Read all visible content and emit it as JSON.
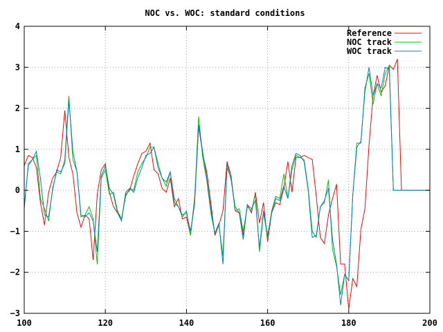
{
  "chart_data": {
    "type": "line",
    "title": "NOC vs. WOC: standard conditions",
    "xlabel": "",
    "ylabel": "",
    "xlim": [
      100,
      200
    ],
    "ylim": [
      -3,
      4
    ],
    "xticks": [
      100,
      120,
      140,
      160,
      180,
      200
    ],
    "yticks": [
      -3,
      -2,
      -1,
      0,
      1,
      2,
      3,
      4
    ],
    "grid": true,
    "legend_position": "top-right",
    "x": [
      100,
      101,
      102,
      103,
      104,
      105,
      106,
      107,
      108,
      109,
      110,
      111,
      112,
      113,
      114,
      115,
      116,
      117,
      118,
      119,
      120,
      121,
      122,
      123,
      124,
      125,
      126,
      127,
      128,
      129,
      130,
      131,
      132,
      133,
      134,
      135,
      136,
      137,
      138,
      139,
      140,
      141,
      142,
      143,
      144,
      145,
      146,
      147,
      148,
      149,
      150,
      151,
      152,
      153,
      154,
      155,
      156,
      157,
      158,
      159,
      160,
      161,
      162,
      163,
      164,
      165,
      166,
      167,
      168,
      169,
      170,
      171,
      172,
      173,
      174,
      175,
      176,
      177,
      178,
      179,
      180,
      181,
      182,
      183,
      184,
      185,
      186,
      187,
      188,
      189,
      190,
      191,
      192,
      193,
      194,
      195,
      196,
      197,
      198,
      199,
      200
    ],
    "series": [
      {
        "name": "Reference",
        "color": "#ff0000",
        "values": [
          0.6,
          0.85,
          0.8,
          0.55,
          -0.3,
          -0.85,
          -0.05,
          0.3,
          0.45,
          0.8,
          1.95,
          0.8,
          0.4,
          -0.55,
          -0.9,
          -0.6,
          -0.7,
          -1.7,
          -0.1,
          0.5,
          0.65,
          -0.05,
          -0.4,
          -0.55,
          -0.7,
          -0.1,
          0.0,
          0.35,
          0.65,
          0.9,
          0.95,
          1.15,
          0.5,
          0.4,
          0.05,
          -0.05,
          0.3,
          -0.4,
          -0.2,
          -0.7,
          -0.65,
          -1.1,
          -0.2,
          1.55,
          0.9,
          0.45,
          -0.3,
          -1.1,
          -0.85,
          -0.5,
          0.7,
          0.35,
          -0.5,
          -0.55,
          -1.1,
          -0.35,
          -0.55,
          -0.05,
          -0.8,
          -0.3,
          -1.25,
          -0.55,
          -0.3,
          -0.35,
          0.05,
          0.7,
          -0.05,
          0.8,
          0.8,
          0.85,
          0.8,
          0.75,
          -0.15,
          -1.15,
          -1.3,
          -0.6,
          -0.2,
          0.15,
          -1.8,
          -1.8,
          -2.9,
          -2.15,
          -2.35,
          -0.95,
          -0.45,
          1.1,
          2.3,
          2.8,
          2.4,
          2.55,
          3.05,
          2.95,
          3.2,
          0.0,
          0.0,
          0.0,
          0.0,
          0.0,
          0.0,
          0.0,
          0.0
        ],
        "x_offset": 0
      },
      {
        "name": "NOC track",
        "color": "#00c000",
        "values": [
          -0.4,
          0.6,
          0.75,
          0.85,
          -0.2,
          -0.45,
          -0.75,
          0.05,
          0.45,
          0.4,
          0.75,
          2.3,
          0.75,
          0.45,
          -0.65,
          -0.6,
          -0.4,
          -0.7,
          -1.8,
          0.3,
          0.5,
          -0.1,
          -0.05,
          -0.5,
          -0.7,
          -0.15,
          0.05,
          0.0,
          0.45,
          0.65,
          0.8,
          1.05,
          1.05,
          0.65,
          0.3,
          0.1,
          0.45,
          -0.2,
          -0.4,
          -0.65,
          -0.5,
          -1.1,
          -0.25,
          1.8,
          0.8,
          0.25,
          -0.55,
          -1.05,
          -0.85,
          -1.6,
          0.55,
          0.3,
          -0.5,
          -0.45,
          -1.0,
          -0.4,
          -0.5,
          -0.1,
          -1.5,
          -0.55,
          -1.15,
          -0.5,
          -0.15,
          -0.2,
          0.4,
          -0.2,
          0.5,
          0.85,
          0.8,
          0.75,
          0.05,
          -1.0,
          -1.15,
          -0.4,
          -0.3,
          0.25,
          -1.45,
          -1.85,
          -2.55,
          -2.05,
          -2.2,
          -0.1,
          1.15,
          1.15,
          2.5,
          2.85,
          2.1,
          2.6,
          2.3,
          2.85,
          3.05,
          0.0,
          0.0,
          0.0,
          0.0,
          0.0,
          0.0,
          0.0,
          0.0,
          0.0,
          0.0
        ],
        "x_offset": 0
      },
      {
        "name": "WOC track",
        "color": "#0080c0",
        "values": [
          -0.45,
          0.65,
          0.75,
          0.95,
          0.3,
          -0.6,
          -0.65,
          0.0,
          0.5,
          0.45,
          0.65,
          2.2,
          0.95,
          0.45,
          -0.6,
          -0.65,
          -0.55,
          -0.75,
          -1.5,
          0.35,
          0.6,
          0.05,
          -0.1,
          -0.55,
          -0.75,
          -0.05,
          0.05,
          -0.05,
          0.3,
          0.55,
          0.85,
          0.9,
          1.05,
          0.55,
          0.3,
          0.2,
          0.45,
          -0.3,
          -0.4,
          -0.6,
          -0.55,
          -1.0,
          -0.35,
          1.6,
          0.95,
          0.3,
          -0.45,
          -1.05,
          -0.8,
          -1.8,
          0.65,
          0.25,
          -0.4,
          -0.55,
          -1.2,
          -0.35,
          -0.45,
          -0.25,
          -1.4,
          -0.5,
          -1.1,
          -0.55,
          -0.2,
          -0.25,
          0.1,
          -0.2,
          0.6,
          0.9,
          0.85,
          0.7,
          0.0,
          -1.15,
          -1.1,
          -0.4,
          -0.25,
          0.05,
          -1.2,
          -1.8,
          -2.8,
          -2.05,
          -2.2,
          -0.1,
          1.05,
          1.2,
          2.4,
          3.0,
          2.3,
          2.6,
          2.5,
          3.0,
          2.95,
          0.0,
          0.0,
          0.0,
          0.0,
          0.0,
          0.0,
          0.0,
          0.0,
          0.0,
          0.0
        ],
        "x_offset": 0
      }
    ]
  }
}
